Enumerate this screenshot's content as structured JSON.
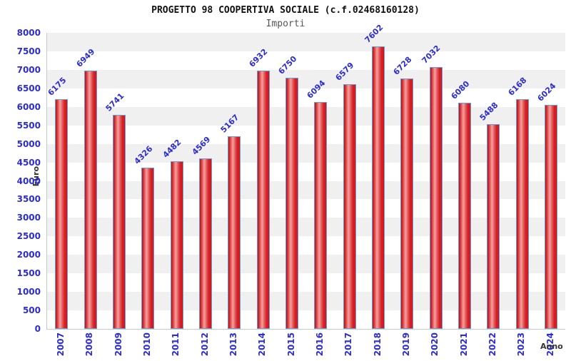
{
  "header": {
    "title": "PROGETTO 98 COOPERTIVA SOCIALE (c.f.02468160128)",
    "subtitle": "Importi"
  },
  "chart_data": {
    "type": "bar",
    "title": "PROGETTO 98 COOPERTIVA SOCIALE (c.f.02468160128)",
    "subtitle": "Importi",
    "xlabel": "Anno",
    "ylabel": "Euro",
    "categories": [
      "2007",
      "2008",
      "2009",
      "2010",
      "2011",
      "2012",
      "2013",
      "2014",
      "2015",
      "2016",
      "2017",
      "2018",
      "2019",
      "2020",
      "2021",
      "2022",
      "2023",
      "2024"
    ],
    "values": [
      6175,
      6949,
      5741,
      4326,
      4482,
      4569,
      5167,
      6932,
      6750,
      6094,
      6579,
      7602,
      6728,
      7032,
      6080,
      5488,
      6168,
      6024
    ],
    "ylim": [
      0,
      8000
    ],
    "ytick_step": 500,
    "legend": "none",
    "grid": "alternating-horizontal-bands",
    "colors": {
      "label_text": "#2b2bd8",
      "bar_border": "#62a2dc",
      "bar_fill_dark": "#c01016",
      "bar_fill_light": "#f4a0a0",
      "band_gray": "#f0f0f0",
      "band_white": "#ffffff",
      "title_text": "#111111",
      "subtitle_text": "#555555",
      "axis_title_text": "#333333"
    }
  }
}
